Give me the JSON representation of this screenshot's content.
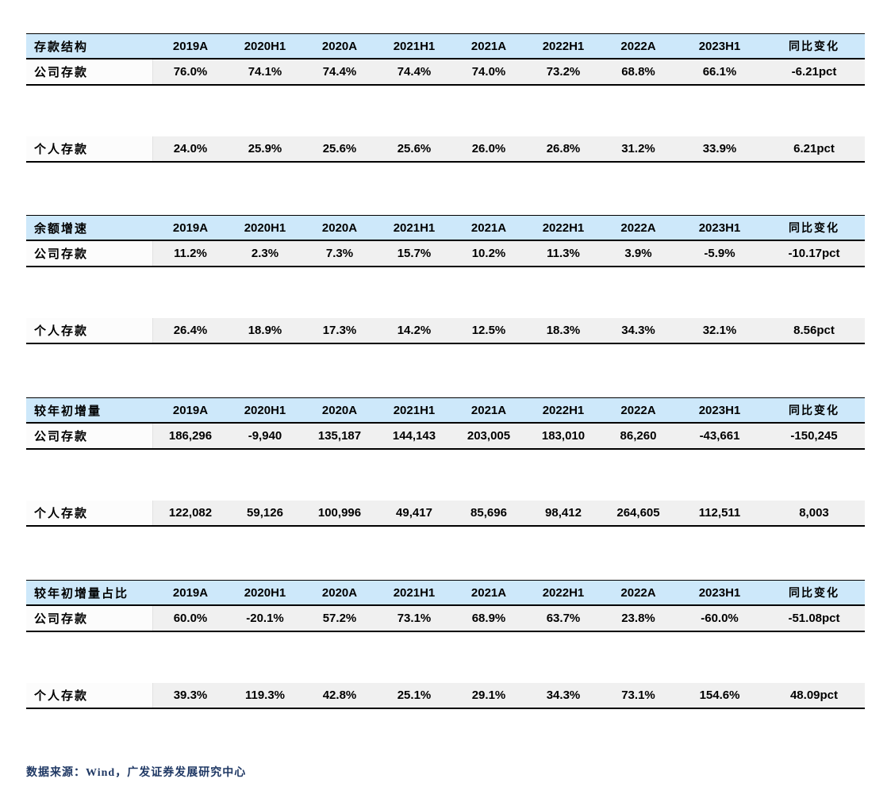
{
  "columns": [
    "2019A",
    "2020H1",
    "2020A",
    "2021H1",
    "2021A",
    "2022H1",
    "2022A",
    "2023H1",
    "同比变化"
  ],
  "tables": [
    {
      "title": "存款结构",
      "rows": [
        {
          "label": "公司存款",
          "values": [
            "76.0%",
            "74.1%",
            "74.4%",
            "74.4%",
            "74.0%",
            "73.2%",
            "68.8%",
            "66.1%",
            "-6.21pct"
          ]
        },
        {
          "label": "个人存款",
          "values": [
            "24.0%",
            "25.9%",
            "25.6%",
            "25.6%",
            "26.0%",
            "26.8%",
            "31.2%",
            "33.9%",
            "6.21pct"
          ]
        }
      ]
    },
    {
      "title": "余额增速",
      "rows": [
        {
          "label": "公司存款",
          "values": [
            "11.2%",
            "2.3%",
            "7.3%",
            "15.7%",
            "10.2%",
            "11.3%",
            "3.9%",
            "-5.9%",
            "-10.17pct"
          ]
        },
        {
          "label": "个人存款",
          "values": [
            "26.4%",
            "18.9%",
            "17.3%",
            "14.2%",
            "12.5%",
            "18.3%",
            "34.3%",
            "32.1%",
            "8.56pct"
          ]
        }
      ]
    },
    {
      "title": "较年初增量",
      "rows": [
        {
          "label": "公司存款",
          "values": [
            "186,296",
            "-9,940",
            "135,187",
            "144,143",
            "203,005",
            "183,010",
            "86,260",
            "-43,661",
            "-150,245"
          ]
        },
        {
          "label": "个人存款",
          "values": [
            "122,082",
            "59,126",
            "100,996",
            "49,417",
            "85,696",
            "98,412",
            "264,605",
            "112,511",
            "8,003"
          ]
        }
      ]
    },
    {
      "title": "较年初增量占比",
      "rows": [
        {
          "label": "公司存款",
          "values": [
            "60.0%",
            "-20.1%",
            "57.2%",
            "73.1%",
            "68.9%",
            "63.7%",
            "23.8%",
            "-60.0%",
            "-51.08pct"
          ]
        },
        {
          "label": "个人存款",
          "values": [
            "39.3%",
            "119.3%",
            "42.8%",
            "25.1%",
            "29.1%",
            "34.3%",
            "73.1%",
            "154.6%",
            "48.09pct"
          ]
        }
      ]
    }
  ],
  "footer": {
    "source_text": "数据来源：Wind，广发证券发展研究中心"
  },
  "colors": {
    "header_bg": "#CDE8FA",
    "row_bg": "#F0F0F0",
    "label_cell_bg": "#FCFCFC",
    "border": "#000000",
    "footer_text": "#1F3864"
  }
}
